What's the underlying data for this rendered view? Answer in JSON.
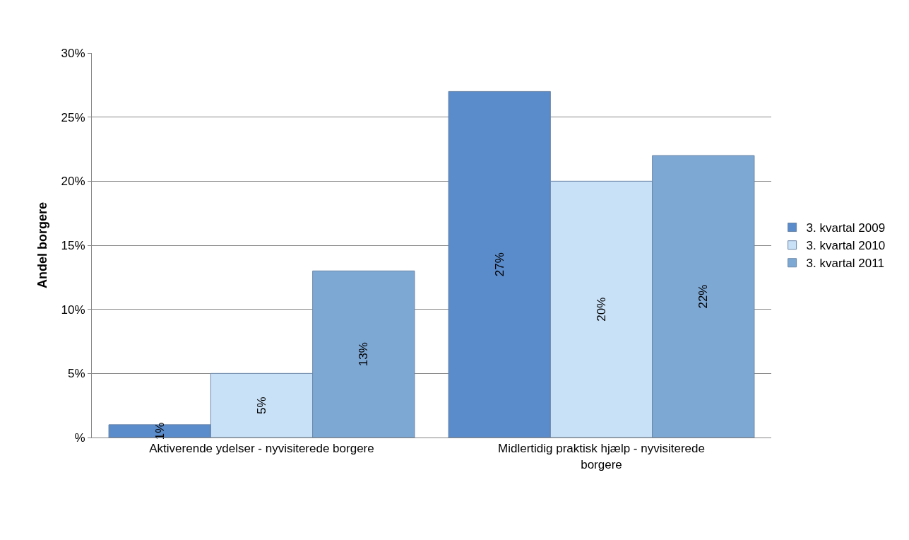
{
  "chart_data": {
    "type": "bar",
    "ylabel": "Andel borgere",
    "categories": [
      "Aktiverende ydelser - nyvisiterede borgere",
      "Midlertidig praktisk hjælp - nyvisiterede borgere"
    ],
    "series": [
      {
        "name": "3. kvartal 2009",
        "color": "#5a8bca",
        "values": [
          1,
          27
        ],
        "value_labels": [
          "1%",
          "27%"
        ]
      },
      {
        "name": "3. kvartal 2010",
        "color": "#c9e1f7",
        "values": [
          5,
          20
        ],
        "value_labels": [
          "5%",
          "20%"
        ]
      },
      {
        "name": "3. kvartal 2011",
        "color": "#7ea8d4",
        "values": [
          13,
          22
        ],
        "value_labels": [
          "13%",
          "22%"
        ]
      }
    ],
    "ylim": [
      0,
      30
    ],
    "yticks": [
      {
        "value": 0,
        "label": "%"
      },
      {
        "value": 5,
        "label": "5%"
      },
      {
        "value": 10,
        "label": "10%"
      },
      {
        "value": 15,
        "label": "15%"
      },
      {
        "value": 20,
        "label": "20%"
      },
      {
        "value": 25,
        "label": "25%"
      },
      {
        "value": 30,
        "label": "30%"
      }
    ],
    "grid": "y",
    "legend": "right"
  }
}
